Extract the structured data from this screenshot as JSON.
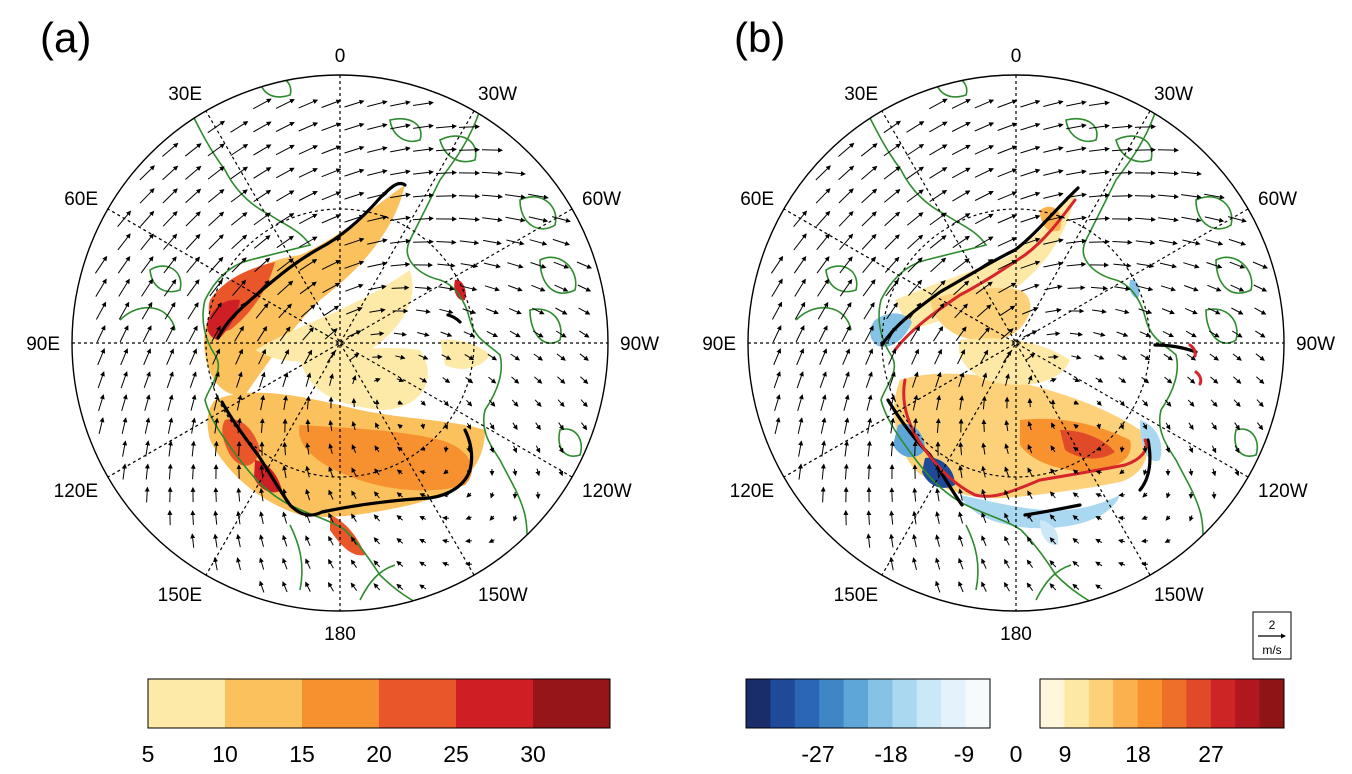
{
  "panels": [
    {
      "id": "a",
      "label": "(a)",
      "lon_labels": [
        "0",
        "30W",
        "60W",
        "90W",
        "120W",
        "150W",
        "180",
        "150E",
        "120E",
        "90E",
        "60E",
        "30E"
      ],
      "colorbar": {
        "colors": [
          "#fde9a8",
          "#fbc15c",
          "#f79130",
          "#e9562a",
          "#cf1f25",
          "#951519"
        ],
        "tick_labels": [
          "5",
          "10",
          "15",
          "20",
          "25",
          "30"
        ]
      }
    },
    {
      "id": "b",
      "label": "(b)",
      "lon_labels": [
        "0",
        "30W",
        "60W",
        "90W",
        "120W",
        "150W",
        "180",
        "150E",
        "120E",
        "90E",
        "60E",
        "30E"
      ],
      "colorbar": {
        "neg_colors": [
          "#1a2d6b",
          "#1f4a9a",
          "#2b66b4",
          "#3f86c6",
          "#5ea5d8",
          "#85c2e6",
          "#aad8f1",
          "#cbe8f6",
          "#e4f3fb",
          "#f5fafd"
        ],
        "pos_colors": [
          "#fff6dc",
          "#fee8a6",
          "#fdd17a",
          "#fbb24e",
          "#f7922f",
          "#ee6f2a",
          "#e04a28",
          "#cd2426",
          "#b0171f",
          "#8e1416"
        ],
        "tick_labels": [
          "-27",
          "-18",
          "-9",
          "0",
          "9",
          "18",
          "27"
        ]
      },
      "reference_vector": {
        "value": "2",
        "unit": "m/s"
      }
    }
  ],
  "colors": {
    "coastline": "#2e8b2e",
    "contour_black": "#000000",
    "contour_red": "#d7262b"
  }
}
